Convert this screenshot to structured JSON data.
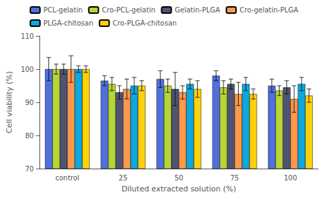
{
  "chart_data": {
    "type": "bar",
    "xlabel": "Diluted extracted solution (%)",
    "ylabel": "Cell viability (%)",
    "categories": [
      "control",
      "25",
      "50",
      "75",
      "100"
    ],
    "series": [
      {
        "name": "PCL-gelatin",
        "values": [
          100,
          96.5,
          97,
          98,
          95
        ],
        "errors": [
          3.5,
          1.5,
          2.5,
          1.5,
          2.0
        ]
      },
      {
        "name": "Cro-PCL-gelatin",
        "values": [
          100,
          95.5,
          95,
          94.5,
          93.5
        ],
        "errors": [
          1.5,
          2.0,
          2.0,
          2.0,
          1.5
        ]
      },
      {
        "name": "Gelatin-PLGA",
        "values": [
          100,
          93,
          94,
          95.5,
          94.5
        ],
        "errors": [
          1.5,
          2.0,
          5.0,
          1.5,
          2.0
        ]
      },
      {
        "name": "Cro-gelatin-PLGA",
        "values": [
          100,
          94,
          93,
          92.5,
          91
        ],
        "errors": [
          4.0,
          3.0,
          2.0,
          3.5,
          4.0
        ]
      },
      {
        "name": "PLGA-chitosan",
        "values": [
          100,
          95,
          95.5,
          95.5,
          95.5
        ],
        "errors": [
          1.0,
          2.5,
          1.5,
          2.0,
          2.0
        ]
      },
      {
        "name": "Cro-PLGA-chitosan",
        "values": [
          100,
          95,
          94,
          92.5,
          92
        ],
        "errors": [
          1.0,
          1.5,
          2.5,
          1.5,
          2.0
        ]
      }
    ],
    "ylim": [
      70,
      110
    ],
    "yticks": [
      70,
      80,
      90,
      100,
      110
    ],
    "grid": false,
    "legend": "top"
  }
}
